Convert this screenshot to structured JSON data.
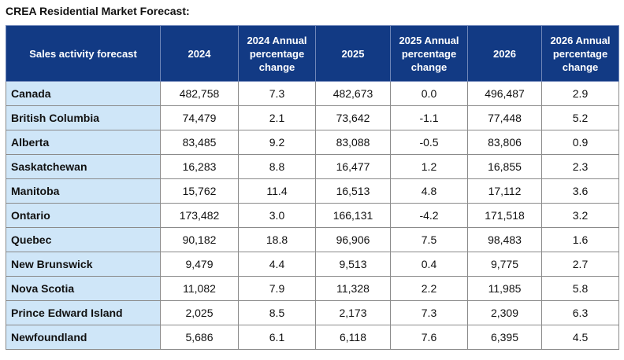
{
  "title": "CREA Residential Market Forecast:",
  "headers": [
    "Sales activity forecast",
    "2024",
    "2024 Annual percentage change",
    "2025",
    "2025 Annual percentage change",
    "2026",
    "2026 Annual percentage change"
  ],
  "rows": [
    [
      "Canada",
      "482,758",
      "7.3",
      "482,673",
      "0.0",
      "496,487",
      "2.9"
    ],
    [
      "British Columbia",
      "74,479",
      "2.1",
      "73,642",
      "-1.1",
      "77,448",
      "5.2"
    ],
    [
      "Alberta",
      "83,485",
      "9.2",
      "83,088",
      "-0.5",
      "83,806",
      "0.9"
    ],
    [
      "Saskatchewan",
      "16,283",
      "8.8",
      "16,477",
      "1.2",
      "16,855",
      "2.3"
    ],
    [
      "Manitoba",
      "15,762",
      "11.4",
      "16,513",
      "4.8",
      "17,112",
      "3.6"
    ],
    [
      "Ontario",
      "173,482",
      "3.0",
      "166,131",
      "-4.2",
      "171,518",
      "3.2"
    ],
    [
      "Quebec",
      "90,182",
      "18.8",
      "96,906",
      "7.5",
      "98,483",
      "1.6"
    ],
    [
      "New Brunswick",
      "9,479",
      "4.4",
      "9,513",
      "0.4",
      "9,775",
      "2.7"
    ],
    [
      "Nova Scotia",
      "11,082",
      "7.9",
      "11,328",
      "2.2",
      "11,985",
      "5.8"
    ],
    [
      "Prince Edward Island",
      "2,025",
      "8.5",
      "2,173",
      "7.3",
      "2,309",
      "6.3"
    ],
    [
      "Newfoundland",
      "5,686",
      "6.1",
      "6,118",
      "7.6",
      "6,395",
      "4.5"
    ]
  ],
  "colors": {
    "header_bg": "#123a84",
    "header_text": "#ffffff",
    "region_bg": "#cfe6f8",
    "grid": "#8a8a8a"
  }
}
